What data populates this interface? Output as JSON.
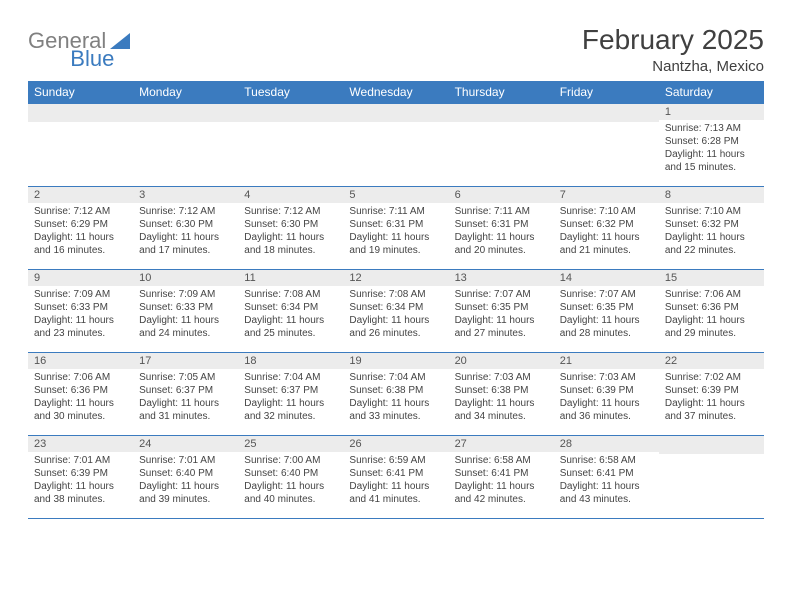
{
  "logo": {
    "text1": "General",
    "text2": "Blue"
  },
  "title": "February 2025",
  "location": "Nantzha, Mexico",
  "colors": {
    "header_bg": "#3b7bbf",
    "header_text": "#ffffff",
    "row_border": "#3b7bbf",
    "daynum_bg": "#ececec",
    "body_text": "#444444"
  },
  "columns": [
    "Sunday",
    "Monday",
    "Tuesday",
    "Wednesday",
    "Thursday",
    "Friday",
    "Saturday"
  ],
  "weeks": [
    [
      {
        "n": "",
        "lines": []
      },
      {
        "n": "",
        "lines": []
      },
      {
        "n": "",
        "lines": []
      },
      {
        "n": "",
        "lines": []
      },
      {
        "n": "",
        "lines": []
      },
      {
        "n": "",
        "lines": []
      },
      {
        "n": "1",
        "lines": [
          "Sunrise: 7:13 AM",
          "Sunset: 6:28 PM",
          "Daylight: 11 hours and 15 minutes."
        ]
      }
    ],
    [
      {
        "n": "2",
        "lines": [
          "Sunrise: 7:12 AM",
          "Sunset: 6:29 PM",
          "Daylight: 11 hours and 16 minutes."
        ]
      },
      {
        "n": "3",
        "lines": [
          "Sunrise: 7:12 AM",
          "Sunset: 6:30 PM",
          "Daylight: 11 hours and 17 minutes."
        ]
      },
      {
        "n": "4",
        "lines": [
          "Sunrise: 7:12 AM",
          "Sunset: 6:30 PM",
          "Daylight: 11 hours and 18 minutes."
        ]
      },
      {
        "n": "5",
        "lines": [
          "Sunrise: 7:11 AM",
          "Sunset: 6:31 PM",
          "Daylight: 11 hours and 19 minutes."
        ]
      },
      {
        "n": "6",
        "lines": [
          "Sunrise: 7:11 AM",
          "Sunset: 6:31 PM",
          "Daylight: 11 hours and 20 minutes."
        ]
      },
      {
        "n": "7",
        "lines": [
          "Sunrise: 7:10 AM",
          "Sunset: 6:32 PM",
          "Daylight: 11 hours and 21 minutes."
        ]
      },
      {
        "n": "8",
        "lines": [
          "Sunrise: 7:10 AM",
          "Sunset: 6:32 PM",
          "Daylight: 11 hours and 22 minutes."
        ]
      }
    ],
    [
      {
        "n": "9",
        "lines": [
          "Sunrise: 7:09 AM",
          "Sunset: 6:33 PM",
          "Daylight: 11 hours and 23 minutes."
        ]
      },
      {
        "n": "10",
        "lines": [
          "Sunrise: 7:09 AM",
          "Sunset: 6:33 PM",
          "Daylight: 11 hours and 24 minutes."
        ]
      },
      {
        "n": "11",
        "lines": [
          "Sunrise: 7:08 AM",
          "Sunset: 6:34 PM",
          "Daylight: 11 hours and 25 minutes."
        ]
      },
      {
        "n": "12",
        "lines": [
          "Sunrise: 7:08 AM",
          "Sunset: 6:34 PM",
          "Daylight: 11 hours and 26 minutes."
        ]
      },
      {
        "n": "13",
        "lines": [
          "Sunrise: 7:07 AM",
          "Sunset: 6:35 PM",
          "Daylight: 11 hours and 27 minutes."
        ]
      },
      {
        "n": "14",
        "lines": [
          "Sunrise: 7:07 AM",
          "Sunset: 6:35 PM",
          "Daylight: 11 hours and 28 minutes."
        ]
      },
      {
        "n": "15",
        "lines": [
          "Sunrise: 7:06 AM",
          "Sunset: 6:36 PM",
          "Daylight: 11 hours and 29 minutes."
        ]
      }
    ],
    [
      {
        "n": "16",
        "lines": [
          "Sunrise: 7:06 AM",
          "Sunset: 6:36 PM",
          "Daylight: 11 hours and 30 minutes."
        ]
      },
      {
        "n": "17",
        "lines": [
          "Sunrise: 7:05 AM",
          "Sunset: 6:37 PM",
          "Daylight: 11 hours and 31 minutes."
        ]
      },
      {
        "n": "18",
        "lines": [
          "Sunrise: 7:04 AM",
          "Sunset: 6:37 PM",
          "Daylight: 11 hours and 32 minutes."
        ]
      },
      {
        "n": "19",
        "lines": [
          "Sunrise: 7:04 AM",
          "Sunset: 6:38 PM",
          "Daylight: 11 hours and 33 minutes."
        ]
      },
      {
        "n": "20",
        "lines": [
          "Sunrise: 7:03 AM",
          "Sunset: 6:38 PM",
          "Daylight: 11 hours and 34 minutes."
        ]
      },
      {
        "n": "21",
        "lines": [
          "Sunrise: 7:03 AM",
          "Sunset: 6:39 PM",
          "Daylight: 11 hours and 36 minutes."
        ]
      },
      {
        "n": "22",
        "lines": [
          "Sunrise: 7:02 AM",
          "Sunset: 6:39 PM",
          "Daylight: 11 hours and 37 minutes."
        ]
      }
    ],
    [
      {
        "n": "23",
        "lines": [
          "Sunrise: 7:01 AM",
          "Sunset: 6:39 PM",
          "Daylight: 11 hours and 38 minutes."
        ]
      },
      {
        "n": "24",
        "lines": [
          "Sunrise: 7:01 AM",
          "Sunset: 6:40 PM",
          "Daylight: 11 hours and 39 minutes."
        ]
      },
      {
        "n": "25",
        "lines": [
          "Sunrise: 7:00 AM",
          "Sunset: 6:40 PM",
          "Daylight: 11 hours and 40 minutes."
        ]
      },
      {
        "n": "26",
        "lines": [
          "Sunrise: 6:59 AM",
          "Sunset: 6:41 PM",
          "Daylight: 11 hours and 41 minutes."
        ]
      },
      {
        "n": "27",
        "lines": [
          "Sunrise: 6:58 AM",
          "Sunset: 6:41 PM",
          "Daylight: 11 hours and 42 minutes."
        ]
      },
      {
        "n": "28",
        "lines": [
          "Sunrise: 6:58 AM",
          "Sunset: 6:41 PM",
          "Daylight: 11 hours and 43 minutes."
        ]
      },
      {
        "n": "",
        "lines": []
      }
    ]
  ]
}
